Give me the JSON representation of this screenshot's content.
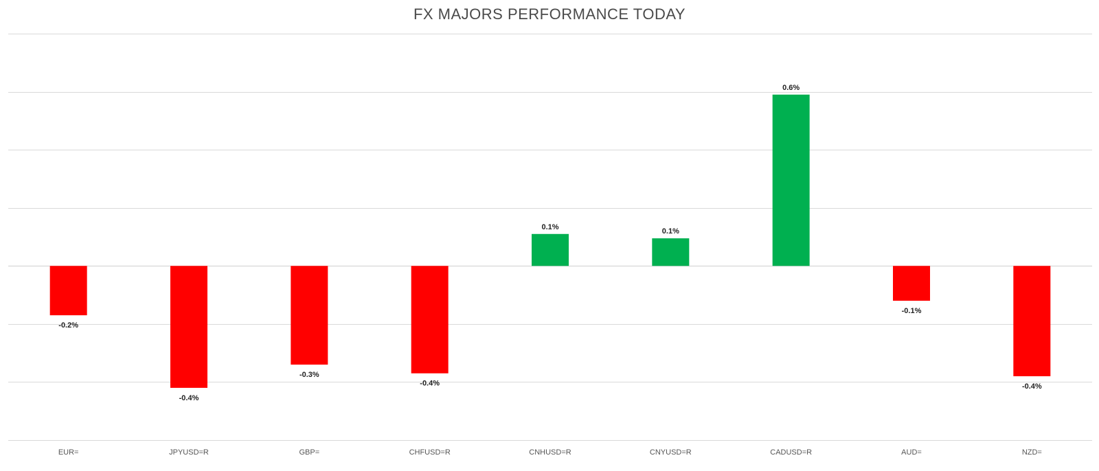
{
  "chart_data": {
    "type": "bar",
    "title": "FX MAJORS PERFORMANCE TODAY",
    "xlabel": "",
    "ylabel": "",
    "ylim": [
      -0.6,
      0.8
    ],
    "grid": true,
    "legend": "none",
    "categories": [
      "EUR=",
      "JPYUSD=R",
      "GBP=",
      "CHFUSD=R",
      "CNHUSD=R",
      "CNYUSD=R",
      "CADUSD=R",
      "AUD=",
      "NZD="
    ],
    "values": [
      -0.17,
      -0.42,
      -0.34,
      -0.37,
      0.11,
      0.095,
      0.59,
      -0.12,
      -0.38
    ],
    "data_labels": [
      "-0.2%",
      "-0.4%",
      "-0.3%",
      "-0.4%",
      "0.1%",
      "0.1%",
      "0.6%",
      "-0.1%",
      "-0.4%"
    ],
    "colors": {
      "positive": "#00b050",
      "negative": "#ff0000"
    }
  }
}
